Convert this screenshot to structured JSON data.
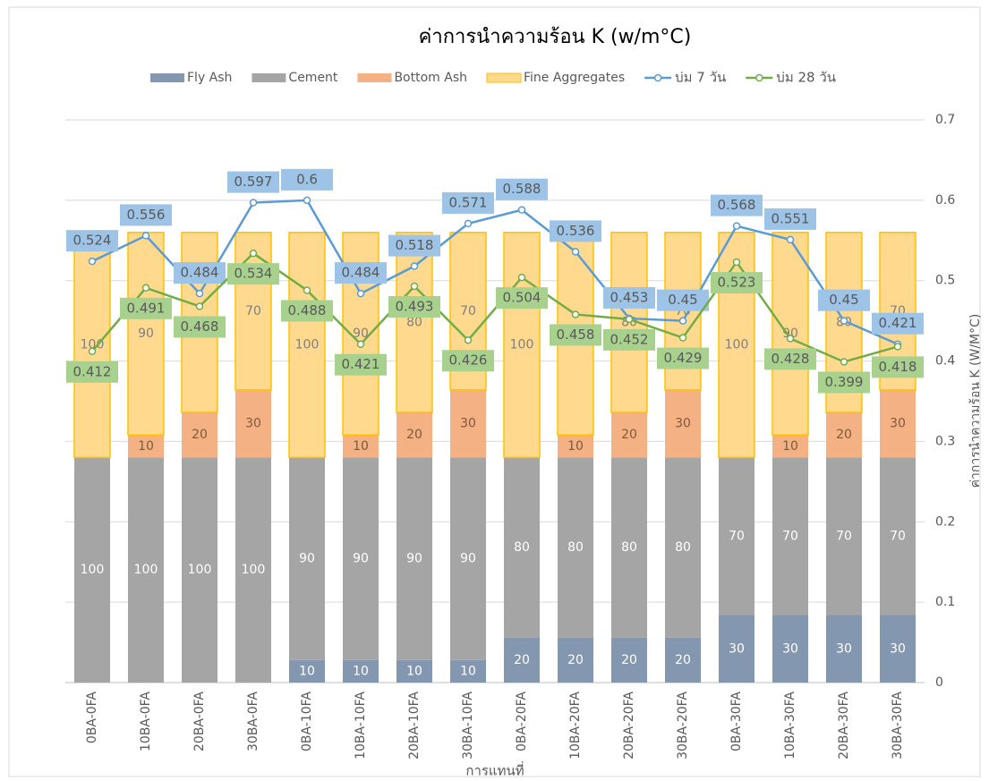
{
  "chart_data": {
    "type": "bar",
    "title": "ค่าการนำความร้อน  K (w/m°C)",
    "x_label": "การแทนที่",
    "y2_label": "ค่าการนำความร้อน K (W/M°C)",
    "categories": [
      "0BA-0FA",
      "10BA-0FA",
      "20BA-0FA",
      "30BA-0FA",
      "0BA-10FA",
      "10BA-10FA",
      "20BA-10FA",
      "30BA-10FA",
      "0BA-20FA",
      "10BA-20FA",
      "20BA-20FA",
      "30BA-20FA",
      "0BA-30FA",
      "10BA-30FA",
      "20BA-30FA",
      "30BA-30FA"
    ],
    "stacked": true,
    "ylim": [
      0,
      250
    ],
    "y2lim": [
      0,
      0.7
    ],
    "y2ticks": [
      0,
      0.1,
      0.2,
      0.3,
      0.4,
      0.5,
      0.6,
      0.7
    ],
    "grid": true,
    "legend": "top",
    "series": [
      {
        "name": "Fly Ash",
        "color": "#8497b0",
        "values": [
          0,
          0,
          0,
          0,
          10,
          10,
          10,
          10,
          20,
          20,
          20,
          20,
          30,
          30,
          30,
          30
        ]
      },
      {
        "name": "Cement",
        "color": "#a5a5a5",
        "values": [
          100,
          100,
          100,
          100,
          90,
          90,
          90,
          90,
          80,
          80,
          80,
          80,
          70,
          70,
          70,
          70
        ]
      },
      {
        "name": "Bottom Ash",
        "color": "#f4b183",
        "values": [
          0,
          10,
          20,
          30,
          0,
          10,
          20,
          30,
          0,
          10,
          20,
          30,
          0,
          10,
          20,
          30
        ]
      },
      {
        "name": "Fine Aggregates",
        "color": "#ffd98e",
        "values": [
          100,
          90,
          80,
          70,
          100,
          90,
          80,
          70,
          100,
          90,
          80,
          70,
          100,
          90,
          80,
          70
        ]
      },
      {
        "name": "บ่ม 7 วัน",
        "type": "line",
        "axis": "y2",
        "color": "#5b9bd5",
        "values": [
          0.524,
          0.556,
          0.484,
          0.597,
          0.6,
          0.484,
          0.518,
          0.571,
          0.588,
          0.536,
          0.453,
          0.45,
          0.568,
          0.551,
          0.45,
          0.421
        ]
      },
      {
        "name": "บ่ม 28 วัน",
        "type": "line",
        "axis": "y2",
        "color": "#70ad47",
        "values": [
          0.412,
          0.491,
          0.468,
          0.534,
          0.488,
          0.421,
          0.493,
          0.426,
          0.504,
          0.458,
          0.452,
          0.429,
          0.523,
          0.428,
          0.399,
          0.418
        ]
      }
    ]
  }
}
